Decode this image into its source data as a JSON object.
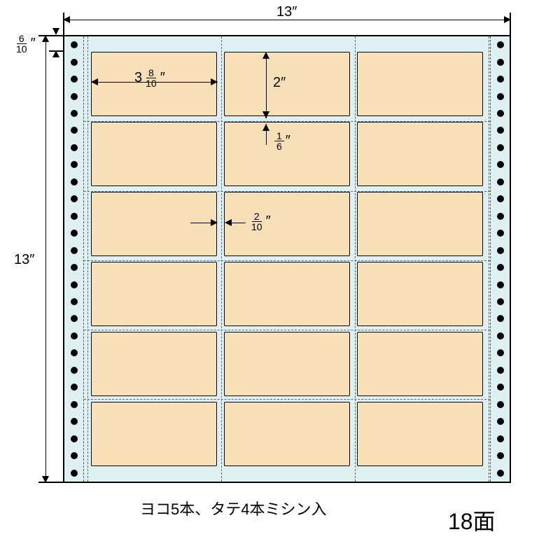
{
  "sheet": {
    "width_label": "13″",
    "height_label": "13″",
    "margin_top_frac": {
      "n": "6",
      "d": "10"
    },
    "label_width": {
      "whole": "3",
      "n": "8",
      "d": "10"
    },
    "label_height": "2″",
    "row_gap_frac": {
      "n": "1",
      "d": "6"
    },
    "col_gap_frac": {
      "n": "2",
      "d": "10"
    },
    "grid": {
      "cols": 3,
      "rows": 6,
      "total": 18
    },
    "perforation_note": "ヨコ5本、タテ4本ミシン入",
    "face_count_label": "18面",
    "colors": {
      "paper_bg": "#dff0f3",
      "label_bg": "#f7dfb8",
      "line": "#000000"
    },
    "holes_per_strip": 26
  }
}
